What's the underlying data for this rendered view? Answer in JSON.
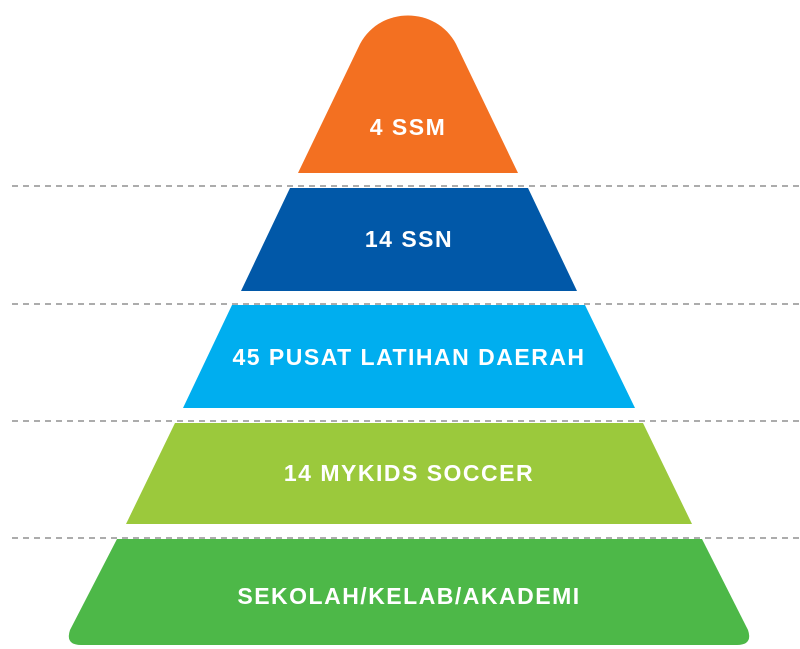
{
  "levels": [
    {
      "label": "4 SSM"
    },
    {
      "label": "14 SSN"
    },
    {
      "label": "45 PUSAT LATIHAN DAERAH"
    },
    {
      "label": "14 MYKIDS SOCCER"
    },
    {
      "label": "SEKOLAH/KELAB/AKADEMI"
    }
  ]
}
